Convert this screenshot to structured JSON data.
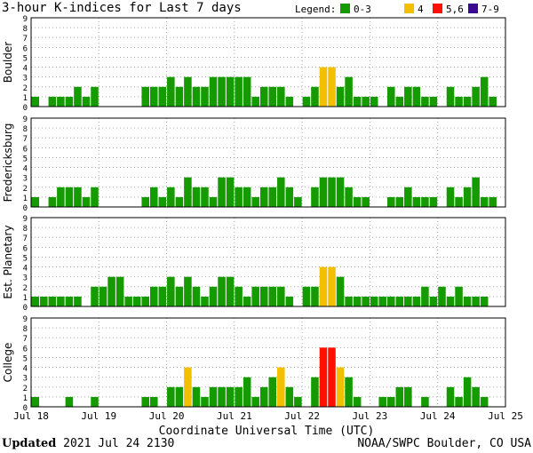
{
  "title": "3-hour K-indices for Last 7 days",
  "legend": {
    "label": "Legend:",
    "entries": [
      {
        "label": "0-3",
        "color": "#159a00"
      },
      {
        "label": "4",
        "color": "#f2c000"
      },
      {
        "label": "5,6",
        "color": "#ff1000"
      },
      {
        "label": "7-9",
        "color": "#3a0a90"
      }
    ]
  },
  "footer": {
    "updated_label": "Updated",
    "updated_value": "2021 Jul 24 2130",
    "credit": "NOAA/SWPC Boulder, CO USA"
  },
  "chart_data": {
    "type": "bar",
    "xlabel": "Coordinate Universal Time (UTC)",
    "x_ticks": [
      "Jul 18",
      "Jul 19",
      "Jul 20",
      "Jul 21",
      "Jul 22",
      "Jul 23",
      "Jul 24",
      "Jul 25"
    ],
    "y_ticks": [
      "0",
      "1",
      "2",
      "3",
      "4",
      "5",
      "6",
      "7",
      "8",
      "9"
    ],
    "ylim": [
      0,
      9
    ],
    "grid": true,
    "color_scale": {
      "0-3": "#159a00",
      "4": "#f2c000",
      "5-6": "#ff1000",
      "7-9": "#3a0a90"
    },
    "panels": [
      {
        "name": "Boulder",
        "values": [
          1,
          0,
          1,
          1,
          1,
          2,
          1,
          2,
          0,
          0,
          0,
          0,
          0,
          2,
          2,
          2,
          3,
          2,
          3,
          2,
          2,
          3,
          3,
          3,
          3,
          3,
          1,
          2,
          2,
          2,
          1,
          0,
          1,
          2,
          4,
          4,
          2,
          3,
          1,
          1,
          1,
          0,
          2,
          1,
          2,
          2,
          1,
          1,
          0,
          2,
          1,
          1,
          2,
          3,
          1,
          0
        ]
      },
      {
        "name": "Fredericksburg",
        "values": [
          1,
          0,
          1,
          2,
          2,
          2,
          1,
          2,
          0,
          0,
          0,
          0,
          0,
          1,
          2,
          1,
          2,
          1,
          3,
          2,
          2,
          1,
          3,
          3,
          2,
          2,
          1,
          2,
          2,
          3,
          2,
          1,
          0,
          2,
          3,
          3,
          3,
          2,
          1,
          1,
          0,
          0,
          1,
          1,
          2,
          1,
          1,
          1,
          0,
          2,
          1,
          2,
          3,
          1,
          1,
          0
        ]
      },
      {
        "name": "Est. Planetary",
        "values": [
          1,
          1,
          1,
          1,
          1,
          1,
          0,
          2,
          2,
          3,
          3,
          1,
          1,
          1,
          2,
          2,
          3,
          2,
          3,
          2,
          1,
          2,
          3,
          3,
          2,
          1,
          2,
          2,
          2,
          2,
          1,
          0,
          2,
          2,
          4,
          4,
          3,
          1,
          1,
          1,
          1,
          1,
          1,
          1,
          1,
          1,
          2,
          1,
          2,
          1,
          2,
          1,
          1,
          1,
          0,
          0
        ]
      },
      {
        "name": "College",
        "values": [
          1,
          0,
          0,
          0,
          1,
          0,
          0,
          1,
          0,
          0,
          0,
          0,
          0,
          1,
          1,
          0,
          2,
          2,
          4,
          2,
          1,
          2,
          2,
          2,
          2,
          3,
          1,
          2,
          3,
          4,
          2,
          1,
          0,
          3,
          6,
          6,
          4,
          3,
          1,
          0,
          0,
          1,
          1,
          2,
          2,
          0,
          1,
          0,
          0,
          2,
          1,
          3,
          2,
          1,
          0,
          0
        ]
      }
    ]
  }
}
